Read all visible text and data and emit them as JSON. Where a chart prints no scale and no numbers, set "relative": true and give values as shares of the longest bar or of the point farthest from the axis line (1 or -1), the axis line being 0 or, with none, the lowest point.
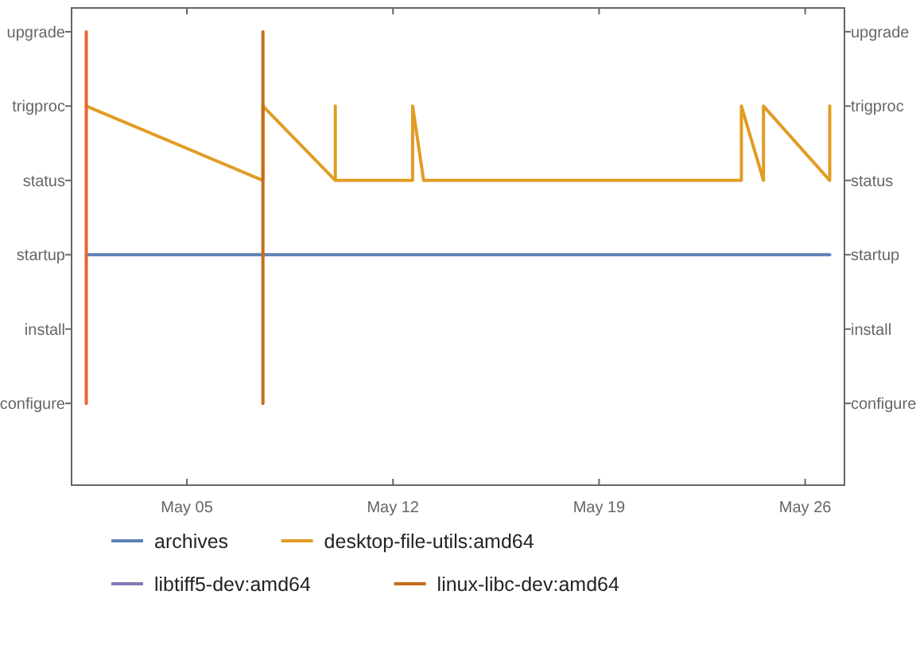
{
  "chart_data": {
    "type": "line",
    "relative": true,
    "xlim": [
      "--05-01T02:00",
      "--05-27T08:00"
    ],
    "xticks": [
      {
        "value": "--05-05",
        "label": "May 05"
      },
      {
        "value": "--05-12",
        "label": "May 12"
      },
      {
        "value": "--05-19",
        "label": "May 19"
      },
      {
        "value": "--05-26",
        "label": "May 26"
      }
    ],
    "y_categories": [
      "upgrade",
      "trigproc",
      "status",
      "startup",
      "install",
      "configure"
    ],
    "y2_categories": [
      "upgrade",
      "trigproc",
      "status",
      "startup",
      "install",
      "configure"
    ],
    "legend": "bottom",
    "series": [
      {
        "name": "archives",
        "color": "#5e81b5",
        "x": [
          "--05-01T14:00",
          "--05-26T20:00"
        ],
        "values": [
          0.4,
          0.4
        ]
      },
      {
        "name": "desktop-file-utils:amd64",
        "color": "#e19c24",
        "x": [
          "--05-01T14:00",
          "--05-07T14:00",
          "--05-07T14:00",
          "--05-10T01:00",
          "--05-10T01:00",
          "--05-10T01:00",
          "--05-12T16:00",
          "--05-12T16:00",
          "--05-13T01:00",
          "--05-23T20:00",
          "--05-23T20:00",
          "--05-24T14:00",
          "--05-24T14:00",
          "--05-26T20:00",
          "--05-26T20:00"
        ],
        "values": [
          0.8,
          0.6,
          0.8,
          0.6,
          0.8,
          0.6,
          0.6,
          0.8,
          0.6,
          0.6,
          0.8,
          0.6,
          0.8,
          0.6,
          0.8
        ]
      },
      {
        "color": "#eb6235",
        "x": [
          "--05-01T14:00",
          "--05-01T14:00"
        ],
        "values": [
          0,
          1
        ]
      },
      {
        "name": "libtiff5-dev:amd64",
        "color": "#8778b3"
      },
      {
        "name": "linux-libc-dev:amd64",
        "color": "#c56e1a",
        "x": [
          "--05-07T14:00",
          "--05-07T14:00"
        ],
        "values": [
          0,
          1
        ]
      }
    ]
  }
}
